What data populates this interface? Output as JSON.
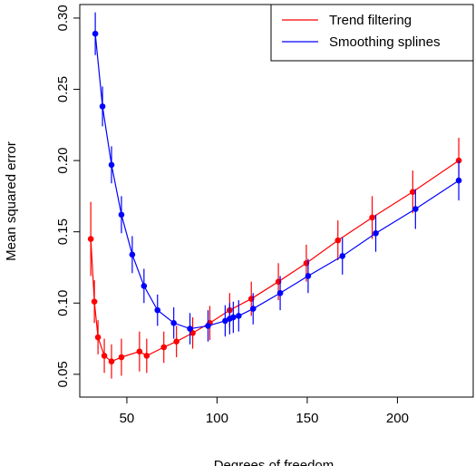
{
  "chart_data": {
    "type": "line",
    "x_label": "Degrees of freedom",
    "y_label": "Mean squared error",
    "xlim": [
      23.9,
      242
    ],
    "xticks": [
      50,
      100,
      150,
      200
    ],
    "ylim": [
      0.034,
      0.3095
    ],
    "yticks": [
      {
        "value": 0.05,
        "label": "0.05"
      },
      {
        "value": 0.1,
        "label": "0.10"
      },
      {
        "value": 0.15,
        "label": "0.15"
      },
      {
        "value": 0.2,
        "label": "0.20"
      },
      {
        "value": 0.25,
        "label": "0.25"
      },
      {
        "value": 0.3,
        "label": "0.30"
      }
    ],
    "legend": "top-right",
    "series": [
      {
        "name": "Trend filtering",
        "color": "#ff0000",
        "x": [
          30,
          32,
          34,
          37.5,
          41.5,
          47,
          57,
          61,
          70.5,
          77.5,
          86.5,
          96,
          107,
          119,
          134,
          149.5,
          167,
          186,
          208.5,
          234
        ],
        "values": [
          0.145,
          0.101,
          0.076,
          0.063,
          0.059,
          0.062,
          0.066,
          0.063,
          0.069,
          0.073,
          0.079,
          0.086,
          0.095,
          0.103,
          0.115,
          0.128,
          0.144,
          0.16,
          0.178,
          0.2
        ],
        "errors": [
          0.026,
          0.015,
          0.012,
          0.012,
          0.012,
          0.013,
          0.014,
          0.012,
          0.011,
          0.011,
          0.011,
          0.012,
          0.012,
          0.012,
          0.013,
          0.013,
          0.014,
          0.015,
          0.015,
          0.016
        ]
      },
      {
        "name": "Smoothing splines",
        "color": "#0000ff",
        "x": [
          32.5,
          36.5,
          41.5,
          47,
          53,
          59.5,
          67,
          76,
          85,
          95,
          104.5,
          107,
          109,
          112,
          120,
          135,
          150.5,
          169.5,
          188,
          210,
          234
        ],
        "values": [
          0.289,
          0.238,
          0.197,
          0.162,
          0.134,
          0.112,
          0.095,
          0.086,
          0.082,
          0.084,
          0.0875,
          0.089,
          0.09,
          0.091,
          0.096,
          0.107,
          0.119,
          0.133,
          0.149,
          0.166,
          0.186
        ],
        "errors": [
          0.015,
          0.014,
          0.013,
          0.013,
          0.013,
          0.012,
          0.011,
          0.011,
          0.011,
          0.011,
          0.011,
          0.011,
          0.011,
          0.011,
          0.011,
          0.012,
          0.012,
          0.013,
          0.013,
          0.014,
          0.014
        ]
      }
    ]
  }
}
